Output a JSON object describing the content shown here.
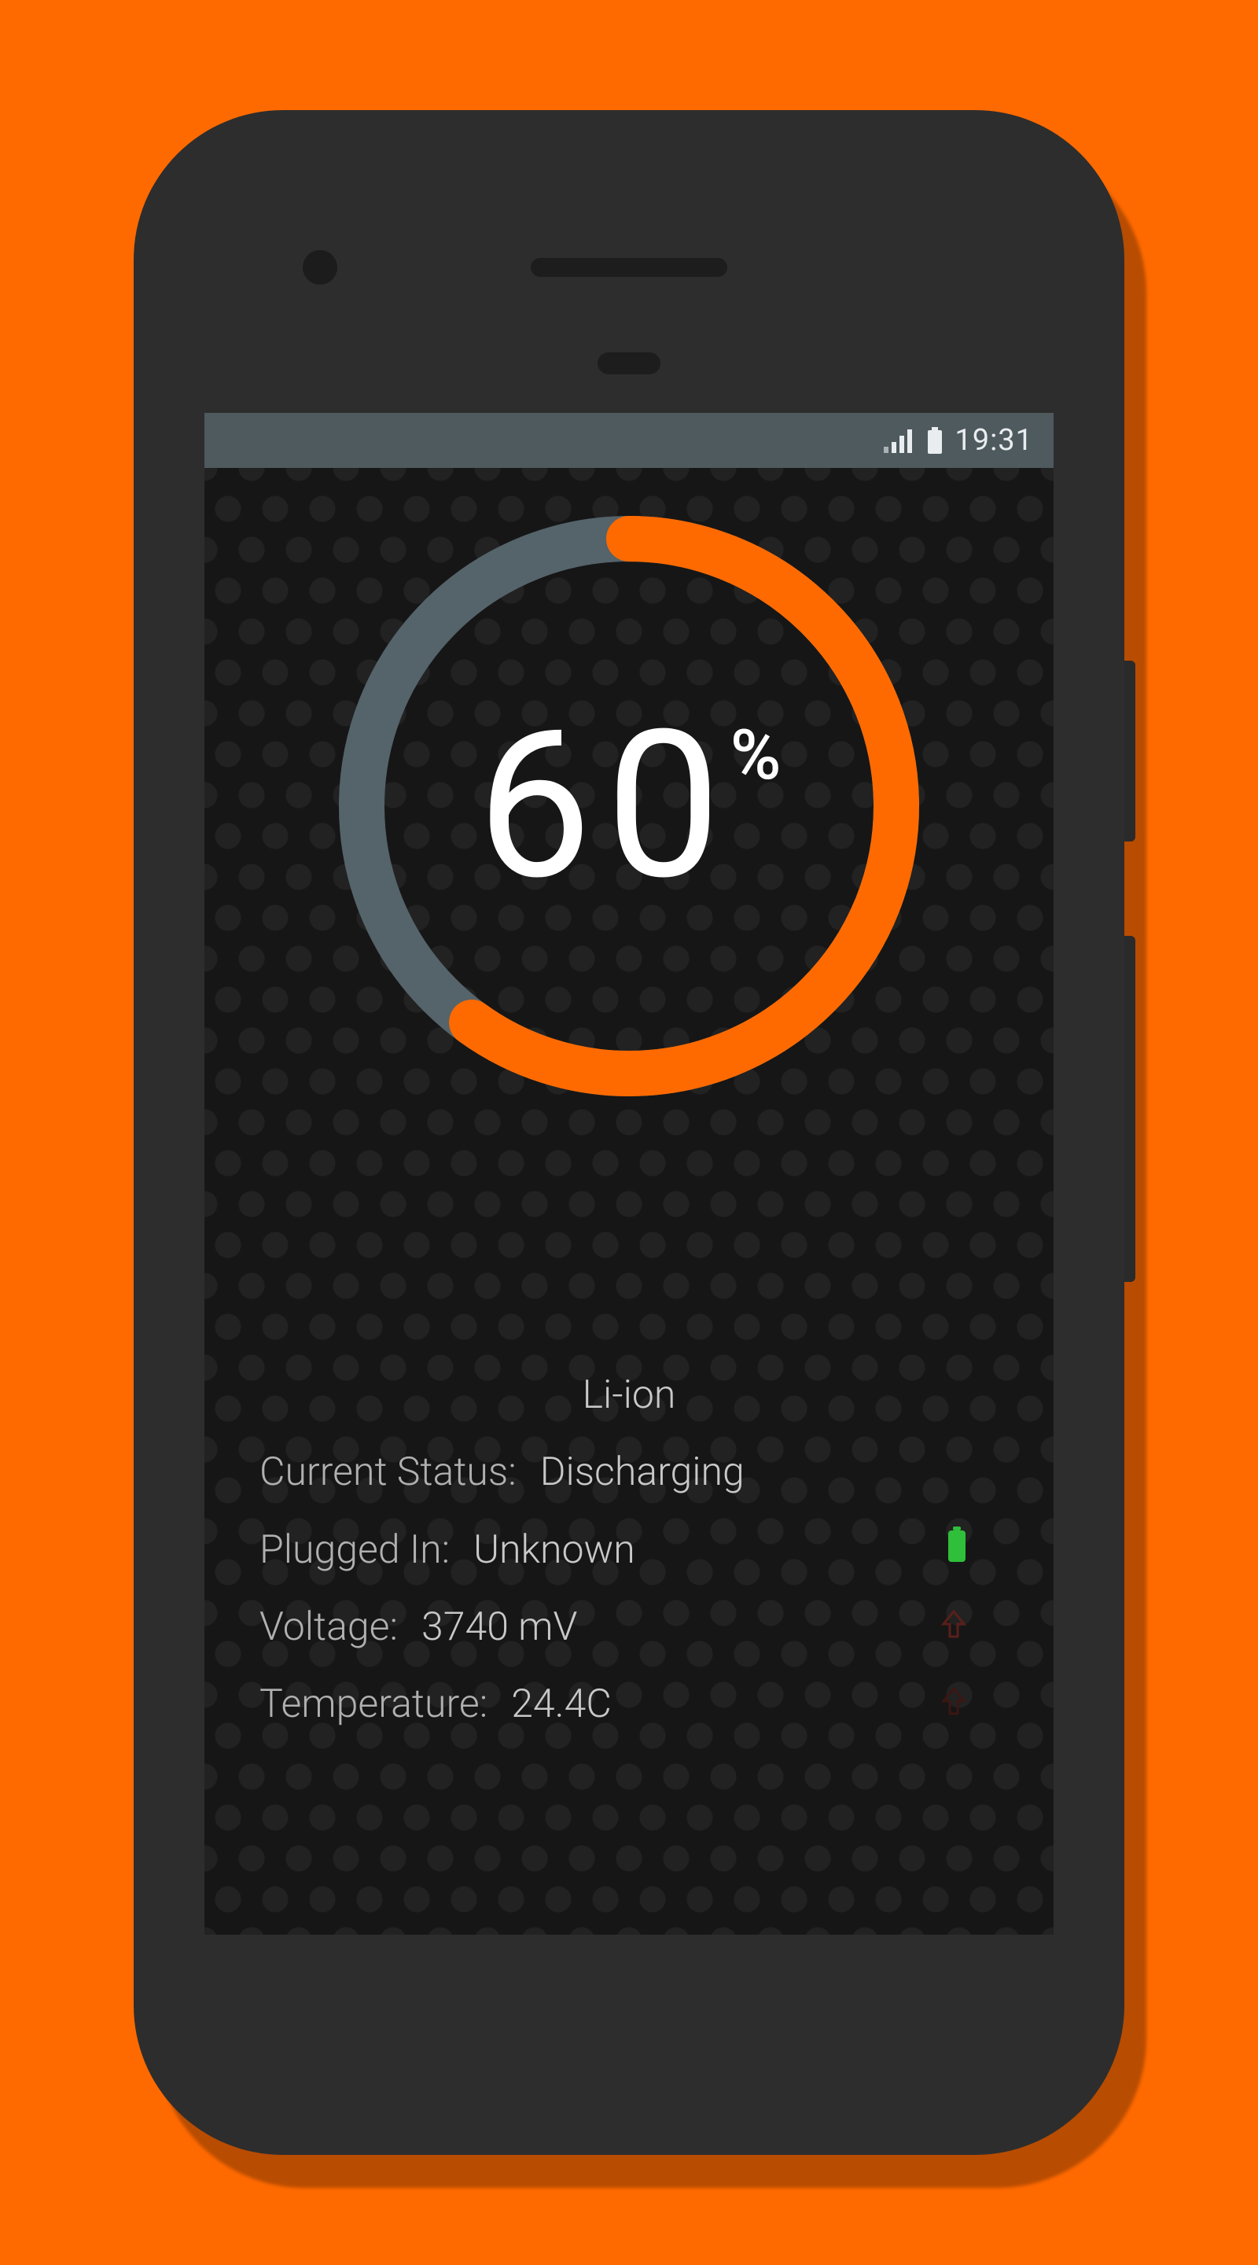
{
  "page": {
    "background_color": "#ff6a00"
  },
  "phone": {
    "body_color": "#2d2d2d",
    "shadow_color": "rgba(0,0,0,0.28)"
  },
  "statusbar": {
    "background_color": "#4f5a5f",
    "text_color": "#e9edef",
    "time": "19:31",
    "signal_icon": "signal-icon",
    "battery_icon": "battery-icon"
  },
  "gauge": {
    "percent": 60,
    "percent_text": "60",
    "percent_symbol": "%",
    "ring_radius": 340,
    "ring_stroke_width": 58,
    "track_color": "#55636a",
    "progress_color": "#ff6a00",
    "text_color": "#ffffff",
    "number_fontsize": 260,
    "symbol_fontsize": 88
  },
  "info": {
    "text_color": "#b8b8b8",
    "fontsize": 50,
    "battery_type": "Li-ion",
    "status_label": "Current Status:",
    "status_value": "Discharging",
    "plugged_label": "Plugged In:",
    "plugged_value": "Unknown",
    "plugged_icon": "battery-mini-icon",
    "plugged_icon_color": "#2fbf3a",
    "voltage_label": "Voltage:",
    "voltage_value": "3740 mV",
    "voltage_icon": "arrow-up-icon",
    "voltage_icon_color": "#5a1f1a",
    "temperature_label": "Temperature:",
    "temperature_value": "24.4C",
    "temperature_icon": "arrow-up-icon",
    "temperature_icon_color": "#3b1613"
  },
  "app": {
    "background_color": "#161616",
    "pattern_color": "#222222"
  }
}
